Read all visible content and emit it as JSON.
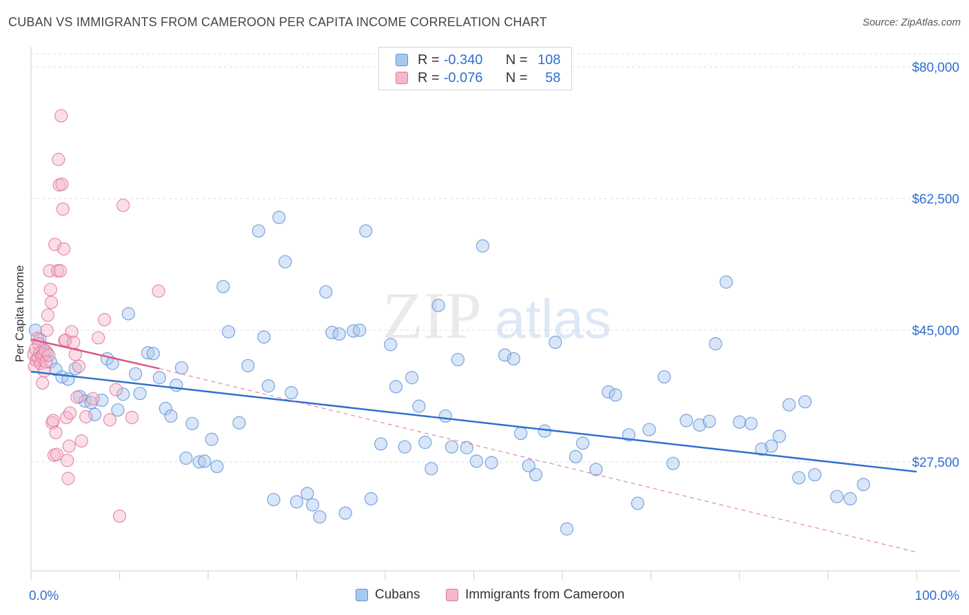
{
  "title": "CUBAN VS IMMIGRANTS FROM CAMEROON PER CAPITA INCOME CORRELATION CHART",
  "source": "Source: ZipAtlas.com",
  "watermark": {
    "zip": "ZIP",
    "atlas": "atlas"
  },
  "legend": [
    {
      "r_label": "R =",
      "r_value": "-0.340",
      "n_label": "N =",
      "n_value": "108",
      "color": "#a8c8f0",
      "stroke": "#5b8fd8"
    },
    {
      "r_label": "R =",
      "r_value": "-0.076",
      "n_label": "N =",
      "n_value": "58",
      "color": "#f5b8cb",
      "stroke": "#e07098"
    }
  ],
  "bottom_legend": [
    "Cubans",
    "Immigrants from Cameroon"
  ],
  "chart_data": {
    "type": "scatter",
    "title": "CUBAN VS IMMIGRANTS FROM CAMEROON PER CAPITA INCOME CORRELATION CHART",
    "ylabel": "Per Capita Income",
    "xlabel": "",
    "x_tick_labels": [
      "0.0%",
      "100.0%"
    ],
    "y_tick_labels": [
      "$27,500",
      "$45,000",
      "$62,500",
      "$80,000"
    ],
    "y_ticks": [
      27500,
      45000,
      62500,
      80000
    ],
    "xlim": [
      0,
      100
    ],
    "ylim": [
      10000,
      82000
    ],
    "grid": true,
    "series": [
      {
        "name": "Cubans",
        "color": "#a8c8f0",
        "stroke": "#5b8fd8",
        "trend": {
          "x": [
            0,
            100
          ],
          "y": [
            39500,
            26200
          ],
          "color": "#2f6fd0"
        },
        "points": [
          [
            0.5,
            45000
          ],
          [
            1.0,
            43800
          ],
          [
            1.3,
            42500
          ],
          [
            1.8,
            42000
          ],
          [
            2.2,
            40800
          ],
          [
            2.8,
            39800
          ],
          [
            3.5,
            38800
          ],
          [
            4.2,
            38500
          ],
          [
            5.0,
            39900
          ],
          [
            5.5,
            36200
          ],
          [
            6.1,
            35600
          ],
          [
            6.8,
            35400
          ],
          [
            7.2,
            33800
          ],
          [
            8.0,
            35700
          ],
          [
            8.6,
            41200
          ],
          [
            9.2,
            40600
          ],
          [
            9.8,
            34400
          ],
          [
            10.4,
            36500
          ],
          [
            11.0,
            47200
          ],
          [
            11.8,
            39200
          ],
          [
            12.3,
            36600
          ],
          [
            13.2,
            42000
          ],
          [
            13.8,
            41900
          ],
          [
            14.5,
            38700
          ],
          [
            15.2,
            34600
          ],
          [
            15.8,
            33600
          ],
          [
            16.4,
            37700
          ],
          [
            17.0,
            40000
          ],
          [
            17.5,
            28000
          ],
          [
            18.2,
            32600
          ],
          [
            19.0,
            27500
          ],
          [
            19.6,
            27600
          ],
          [
            20.4,
            30500
          ],
          [
            21.0,
            26900
          ],
          [
            21.7,
            50800
          ],
          [
            22.3,
            44800
          ],
          [
            23.5,
            32700
          ],
          [
            24.5,
            40300
          ],
          [
            25.7,
            58200
          ],
          [
            26.3,
            44100
          ],
          [
            26.8,
            37600
          ],
          [
            27.4,
            22500
          ],
          [
            28.0,
            60000
          ],
          [
            28.7,
            54100
          ],
          [
            29.4,
            36700
          ],
          [
            30.0,
            22200
          ],
          [
            31.2,
            23300
          ],
          [
            31.8,
            21800
          ],
          [
            32.6,
            20200
          ],
          [
            33.3,
            50100
          ],
          [
            34.0,
            44700
          ],
          [
            34.8,
            44500
          ],
          [
            35.5,
            20700
          ],
          [
            36.4,
            44900
          ],
          [
            37.1,
            45000
          ],
          [
            37.8,
            58200
          ],
          [
            38.4,
            22600
          ],
          [
            39.5,
            29900
          ],
          [
            40.6,
            43100
          ],
          [
            41.2,
            37500
          ],
          [
            42.2,
            29500
          ],
          [
            43.0,
            38700
          ],
          [
            43.8,
            34900
          ],
          [
            44.5,
            30100
          ],
          [
            45.2,
            26600
          ],
          [
            46.0,
            48300
          ],
          [
            46.8,
            33600
          ],
          [
            47.5,
            29500
          ],
          [
            48.2,
            41100
          ],
          [
            49.2,
            29400
          ],
          [
            50.3,
            27600
          ],
          [
            51.0,
            56200
          ],
          [
            52.0,
            27400
          ],
          [
            53.5,
            41700
          ],
          [
            54.5,
            41200
          ],
          [
            55.3,
            31300
          ],
          [
            56.2,
            27000
          ],
          [
            57.0,
            25800
          ],
          [
            58.0,
            31600
          ],
          [
            59.2,
            43400
          ],
          [
            60.5,
            18600
          ],
          [
            61.5,
            28200
          ],
          [
            62.3,
            30000
          ],
          [
            63.8,
            26500
          ],
          [
            65.2,
            36800
          ],
          [
            66.0,
            36400
          ],
          [
            67.5,
            31100
          ],
          [
            68.5,
            22000
          ],
          [
            69.8,
            31800
          ],
          [
            71.5,
            38800
          ],
          [
            72.5,
            27300
          ],
          [
            74.0,
            33000
          ],
          [
            75.5,
            32400
          ],
          [
            76.6,
            32900
          ],
          [
            77.3,
            43200
          ],
          [
            78.5,
            51400
          ],
          [
            80.0,
            32800
          ],
          [
            81.3,
            32600
          ],
          [
            82.5,
            29200
          ],
          [
            83.6,
            29600
          ],
          [
            84.5,
            30900
          ],
          [
            85.6,
            35100
          ],
          [
            86.7,
            25400
          ],
          [
            87.4,
            35500
          ],
          [
            88.5,
            25800
          ],
          [
            91.0,
            22900
          ],
          [
            92.5,
            22600
          ],
          [
            94.0,
            24500
          ]
        ]
      },
      {
        "name": "Immigrants from Cameroon",
        "color": "#f5b8cb",
        "stroke": "#e07098",
        "trend": {
          "x": [
            0,
            14.5
          ],
          "y": [
            43800,
            39900
          ],
          "color": "#e05585"
        },
        "trend_extended": {
          "x": [
            14.5,
            100
          ],
          "y": [
            39900,
            15500
          ],
          "color": "#e07098"
        },
        "points": [
          [
            0.3,
            41800
          ],
          [
            0.4,
            40200
          ],
          [
            0.5,
            42500
          ],
          [
            0.6,
            41000
          ],
          [
            0.7,
            43900
          ],
          [
            0.8,
            41300
          ],
          [
            0.9,
            43200
          ],
          [
            1.0,
            42000
          ],
          [
            1.1,
            40600
          ],
          [
            1.2,
            41500
          ],
          [
            1.3,
            38000
          ],
          [
            1.4,
            41800
          ],
          [
            1.5,
            39600
          ],
          [
            1.6,
            42300
          ],
          [
            1.7,
            40800
          ],
          [
            1.8,
            45000
          ],
          [
            1.9,
            47000
          ],
          [
            2.0,
            41700
          ],
          [
            2.1,
            52900
          ],
          [
            2.2,
            50400
          ],
          [
            2.3,
            48700
          ],
          [
            2.4,
            32700
          ],
          [
            2.5,
            33000
          ],
          [
            2.6,
            28400
          ],
          [
            2.7,
            56400
          ],
          [
            2.8,
            31400
          ],
          [
            2.9,
            28500
          ],
          [
            3.0,
            52900
          ],
          [
            3.1,
            67700
          ],
          [
            3.2,
            64300
          ],
          [
            3.3,
            52900
          ],
          [
            3.4,
            73500
          ],
          [
            3.5,
            64400
          ],
          [
            3.6,
            61100
          ],
          [
            3.7,
            55800
          ],
          [
            3.8,
            43600
          ],
          [
            3.9,
            43700
          ],
          [
            4.0,
            33400
          ],
          [
            4.1,
            27700
          ],
          [
            4.2,
            25300
          ],
          [
            4.3,
            29600
          ],
          [
            4.4,
            34000
          ],
          [
            4.6,
            44800
          ],
          [
            4.8,
            43400
          ],
          [
            5.0,
            41800
          ],
          [
            5.2,
            36100
          ],
          [
            5.4,
            40200
          ],
          [
            5.7,
            30300
          ],
          [
            6.2,
            33500
          ],
          [
            7.0,
            35900
          ],
          [
            7.6,
            44000
          ],
          [
            8.3,
            46400
          ],
          [
            8.9,
            33100
          ],
          [
            9.6,
            37100
          ],
          [
            10.0,
            20300
          ],
          [
            10.4,
            61600
          ],
          [
            11.4,
            33400
          ],
          [
            14.4,
            50200
          ]
        ]
      }
    ]
  }
}
